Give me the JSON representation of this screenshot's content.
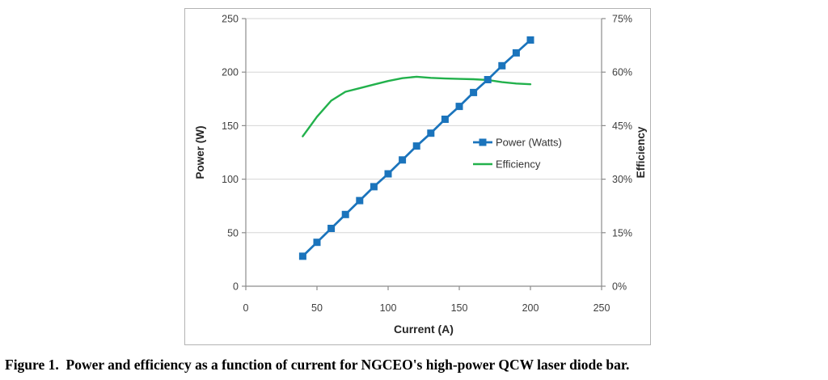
{
  "figure": {
    "caption": "Figure 1.  Power and efficiency as a function of current for NGCEO's high-power QCW laser diode bar."
  },
  "chart_data": {
    "type": "line",
    "title": "",
    "xlabel": "Current (A)",
    "ylabel_left": "Power (W)",
    "ylabel_right": "Efficiency",
    "xlim": [
      0,
      250
    ],
    "ylim_left": [
      0,
      250
    ],
    "ylim_right_percent": [
      0,
      75
    ],
    "x_ticks": [
      0,
      50,
      100,
      150,
      200,
      250
    ],
    "x_tick_labels": [
      "0",
      "50",
      "100",
      "150",
      "200",
      "250"
    ],
    "left_ticks": [
      0,
      50,
      100,
      150,
      200,
      250
    ],
    "left_tick_labels": [
      "0",
      "50",
      "100",
      "150",
      "200",
      "250"
    ],
    "right_ticks_percent": [
      0,
      15,
      30,
      45,
      60,
      75
    ],
    "right_tick_labels": [
      "0%",
      "15%",
      "30%",
      "45%",
      "60%",
      "75%"
    ],
    "grid": true,
    "legend_position": "middle-right",
    "x": [
      40,
      50,
      60,
      70,
      80,
      90,
      100,
      110,
      120,
      130,
      140,
      150,
      160,
      170,
      180,
      190,
      200
    ],
    "series": [
      {
        "name": "Power (Watts)",
        "axis": "left",
        "color": "#1b74bc",
        "marker": "square",
        "values": [
          28,
          41,
          54,
          67,
          80,
          93,
          105,
          118,
          131,
          143,
          156,
          168,
          181,
          193,
          206,
          218,
          230
        ]
      },
      {
        "name": "Efficiency",
        "axis": "right",
        "color": "#22b14c",
        "marker": "none",
        "values": [
          42,
          47.5,
          52,
          54.5,
          55.5,
          56.5,
          57.5,
          58.3,
          58.7,
          58.4,
          58.2,
          58.1,
          58.0,
          57.8,
          57.2,
          56.8,
          56.6
        ]
      }
    ],
    "colors": {
      "axis_line": "#8c8c8c",
      "gridline": "#d6d6d6",
      "tick_text": "#3f3f3f"
    }
  }
}
